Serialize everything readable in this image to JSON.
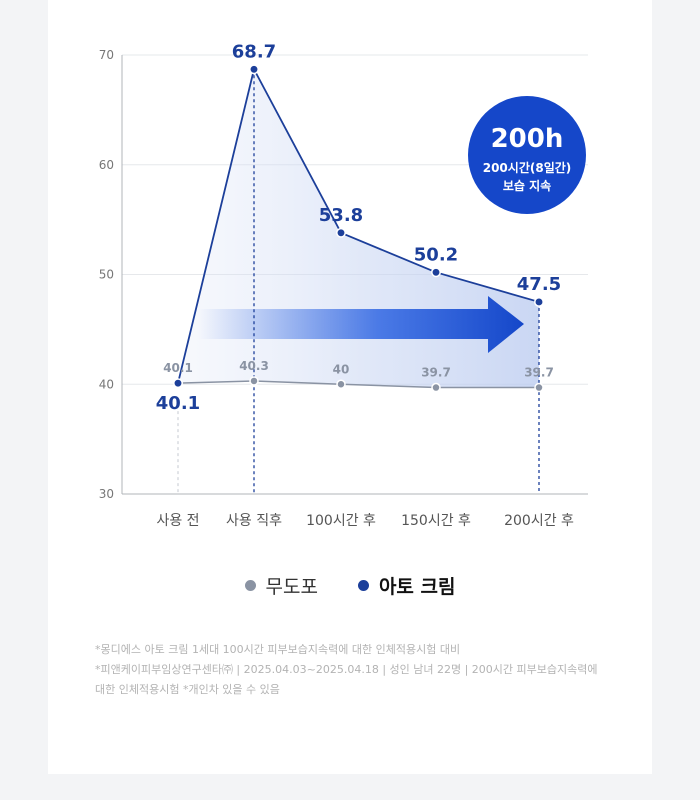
{
  "chart_data": {
    "type": "line",
    "categories": [
      "사용 전",
      "사용 직후",
      "100시간 후",
      "150시간 후",
      "200시간 후"
    ],
    "ylim": [
      30,
      70
    ],
    "yticks": [
      30,
      40,
      50,
      60,
      70
    ],
    "grid": true,
    "series": [
      {
        "name": "무도포",
        "values": [
          40.1,
          40.3,
          40,
          39.7,
          39.7
        ],
        "labels": [
          "40.1",
          "40.3",
          "40",
          "39.7",
          "39.7"
        ],
        "color": "#8a93a3"
      },
      {
        "name": "아토 크림",
        "values": [
          40.1,
          68.7,
          53.8,
          50.2,
          47.5
        ],
        "labels": [
          "40.1",
          "68.7",
          "53.8",
          "50.2",
          "47.5"
        ],
        "color": "#1c3f9a"
      }
    ],
    "legend_position": "bottom",
    "badge": {
      "big": "200h",
      "line1": "200시간(8일간)",
      "line2": "보습 지속",
      "color": "#1547c9"
    }
  },
  "footnote": {
    "line1": "*몽디에스 아토 크림 1세대 100시간 피부보습지속력에 대한 인체적용시험 대비",
    "line2": "*피앤케이피부임상연구센타㈜ | 2025.04.03~2025.04.18 | 성인 남녀 22명 | 200시간 피부보습지속력에",
    "line3": "대한 인체적용시험 *개인차 있을 수 있음"
  }
}
